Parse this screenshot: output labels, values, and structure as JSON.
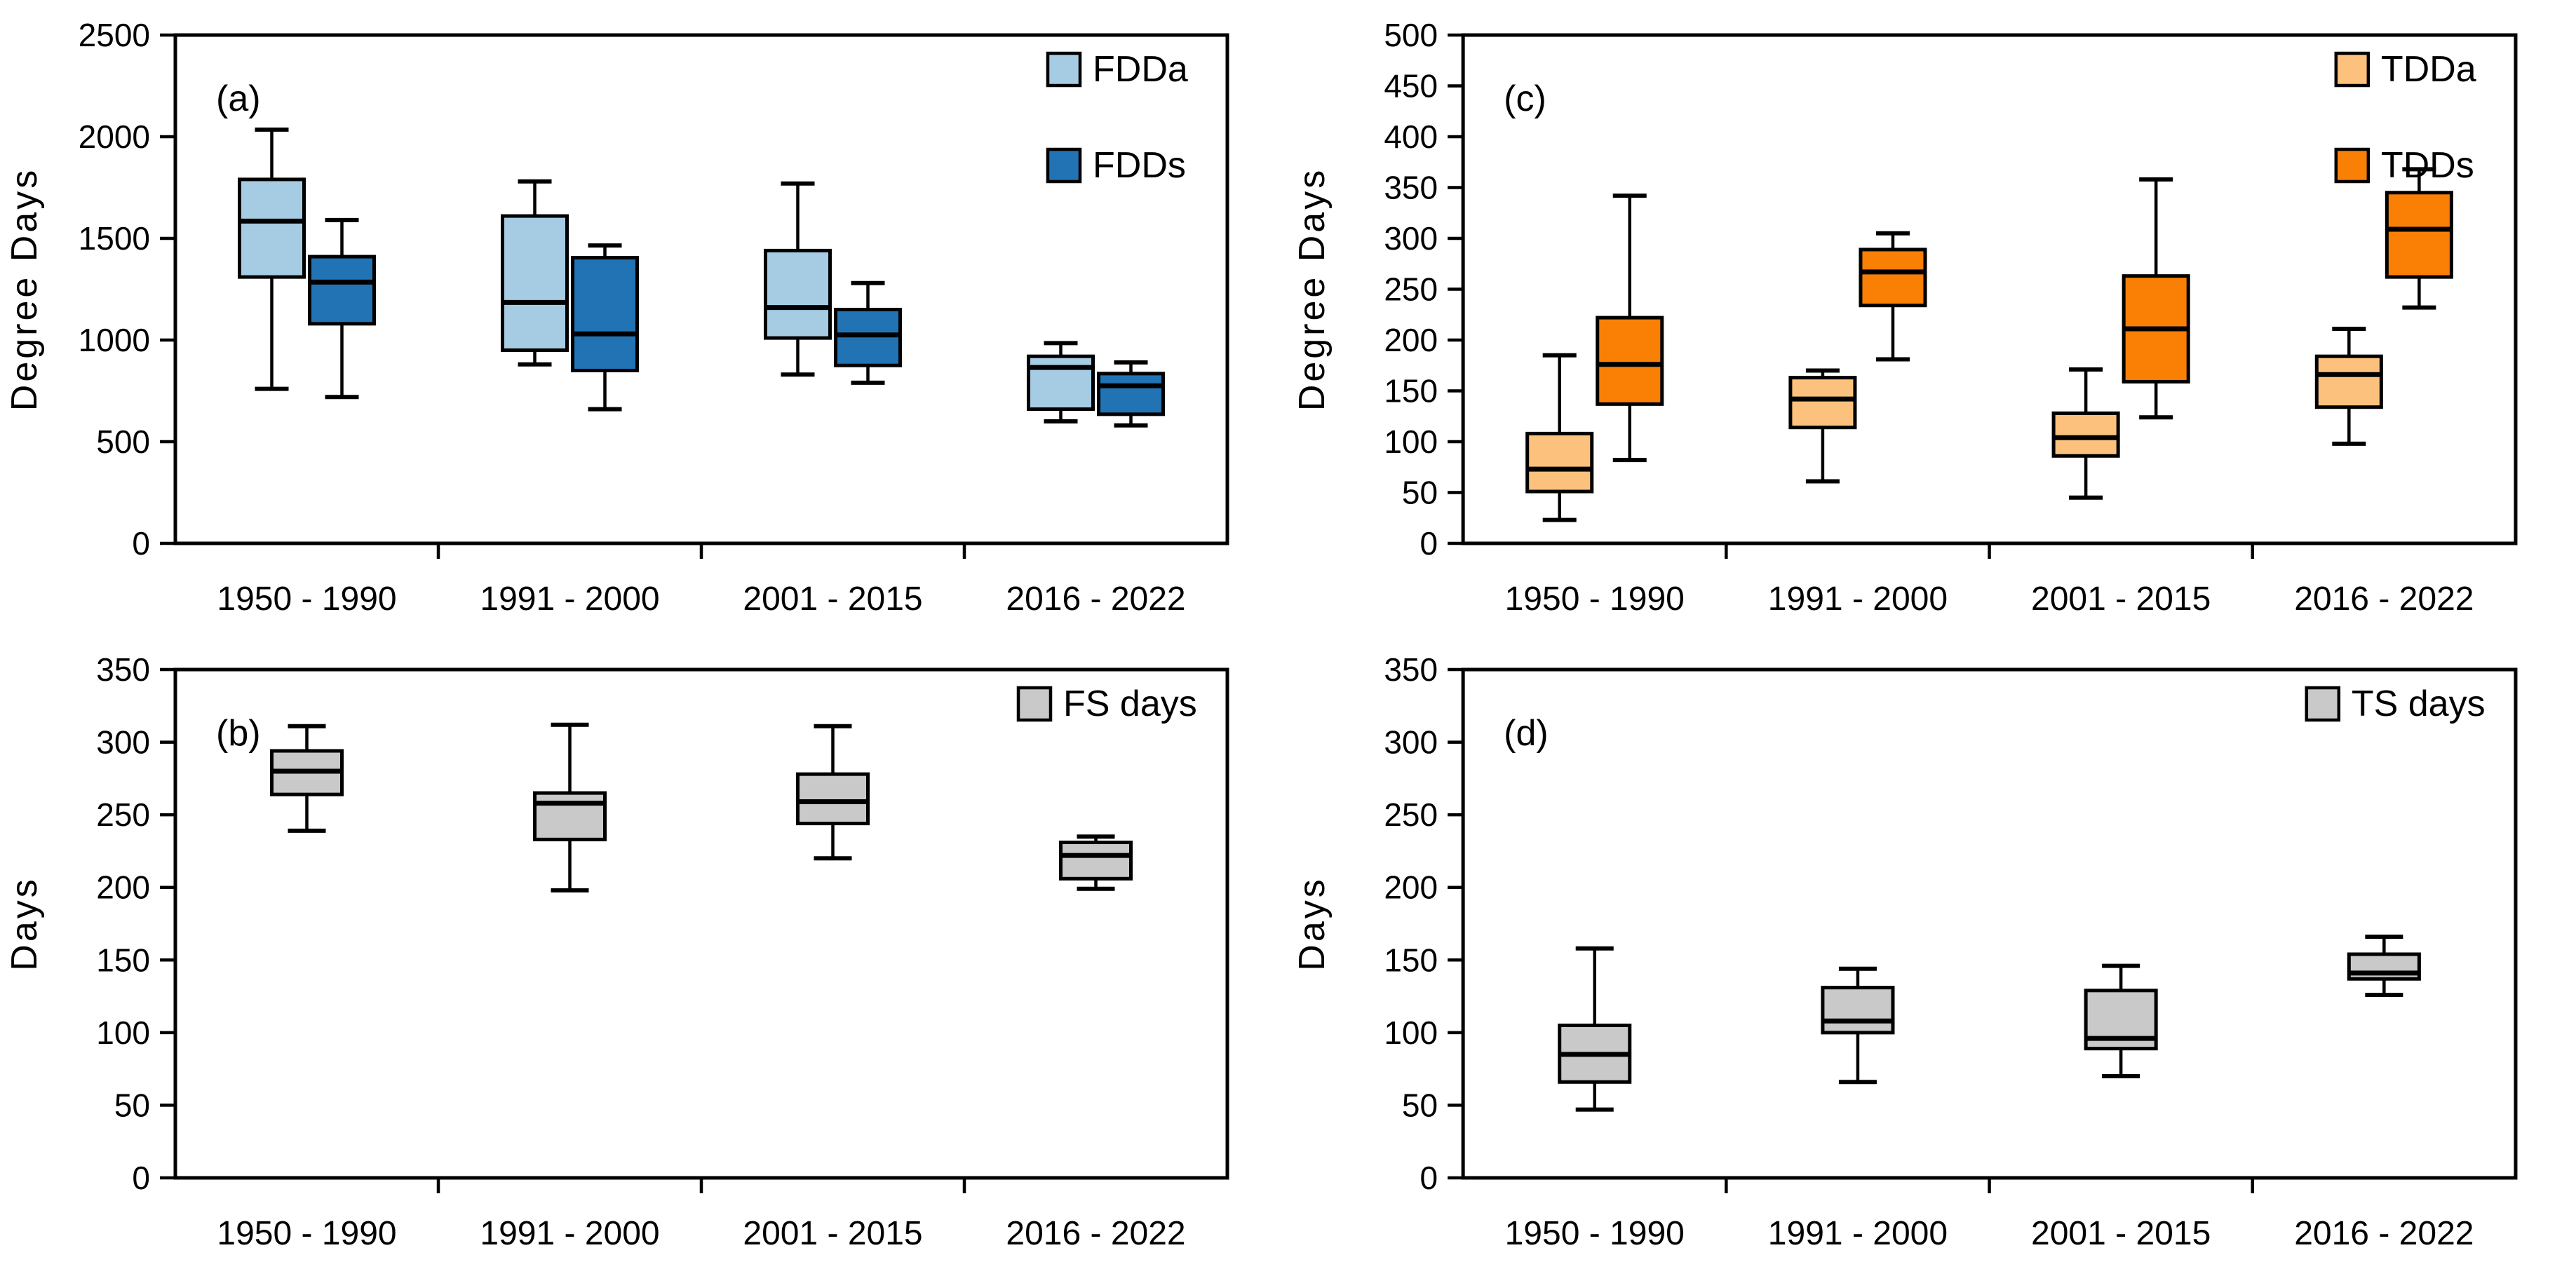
{
  "figure": {
    "background": "#ffffff",
    "frame_color": "#000000"
  },
  "chart_data": [
    {
      "id": "a",
      "panel_label": "(a)",
      "type": "box",
      "ylabel": "Degree Days",
      "ylim": [
        0,
        2500
      ],
      "ytick_step": 500,
      "grid": "off",
      "legend_position": "top-right-inside",
      "categories": [
        "1950 - 1990",
        "1991 - 2000",
        "2001 - 2015",
        "2016 - 2022"
      ],
      "series": [
        {
          "name": "FDDa",
          "color": "#a6cce3",
          "boxes_note": "each box = [whisker_min, q1, median, q3, whisker_max] in Degree Days",
          "boxes": [
            [
              760,
              1310,
              1585,
              1790,
              2035
            ],
            [
              880,
              950,
              1185,
              1610,
              1780
            ],
            [
              830,
              1010,
              1160,
              1440,
              1770
            ],
            [
              600,
              660,
              865,
              920,
              985
            ]
          ]
        },
        {
          "name": "FDDs",
          "color": "#2173b4",
          "boxes": [
            [
              720,
              1080,
              1285,
              1410,
              1590
            ],
            [
              660,
              850,
              1030,
              1405,
              1465
            ],
            [
              790,
              875,
              1025,
              1150,
              1280
            ],
            [
              580,
              635,
              775,
              835,
              890
            ]
          ]
        }
      ]
    },
    {
      "id": "c",
      "panel_label": "(c)",
      "type": "box",
      "ylabel": "Degree Days",
      "ylim": [
        0,
        500
      ],
      "ytick_step": 50,
      "grid": "off",
      "legend_position": "top-right-inside",
      "categories": [
        "1950 - 1990",
        "1991 - 2000",
        "2001 - 2015",
        "2016 - 2022"
      ],
      "series": [
        {
          "name": "TDDa",
          "color": "#fcc27d",
          "boxes": [
            [
              23,
              51,
              73,
              108,
              185
            ],
            [
              61,
              114,
              142,
              163,
              170
            ],
            [
              45,
              86,
              104,
              128,
              171
            ],
            [
              98,
              134,
              166,
              184,
              211
            ]
          ]
        },
        {
          "name": "TDDs",
          "color": "#fa7f05",
          "boxes": [
            [
              82,
              137,
              176,
              222,
              342
            ],
            [
              181,
              234,
              267,
              289,
              305
            ],
            [
              124,
              159,
              211,
              263,
              358
            ],
            [
              232,
              262,
              309,
              345,
              368
            ]
          ]
        }
      ]
    },
    {
      "id": "b",
      "panel_label": "(b)",
      "type": "box",
      "ylabel": "Days",
      "ylim": [
        0,
        350
      ],
      "ytick_step": 50,
      "grid": "off",
      "legend_position": "top-right-inside",
      "categories": [
        "1950 - 1990",
        "1991 - 2000",
        "2001 - 2015",
        "2016 - 2022"
      ],
      "series": [
        {
          "name": "FS days",
          "color": "#c9c9c9",
          "boxes": [
            [
              239,
              264,
              280,
              294,
              311
            ],
            [
              198,
              233,
              258,
              265,
              312
            ],
            [
              220,
              244,
              259,
              278,
              311
            ],
            [
              199,
              206,
              222,
              231,
              235
            ]
          ]
        }
      ]
    },
    {
      "id": "d",
      "panel_label": "(d)",
      "type": "box",
      "ylabel": "Days",
      "ylim": [
        0,
        350
      ],
      "ytick_step": 50,
      "grid": "off",
      "legend_position": "top-right-inside",
      "categories": [
        "1950 - 1990",
        "1991 - 2000",
        "2001 - 2015",
        "2016 - 2022"
      ],
      "series": [
        {
          "name": "TS days",
          "color": "#c9c9c9",
          "boxes": [
            [
              47,
              66,
              85,
              105,
              158
            ],
            [
              66,
              100,
              108,
              131,
              144
            ],
            [
              70,
              89,
              96,
              129,
              146
            ],
            [
              126,
              137,
              141,
              154,
              166
            ]
          ]
        }
      ]
    }
  ]
}
